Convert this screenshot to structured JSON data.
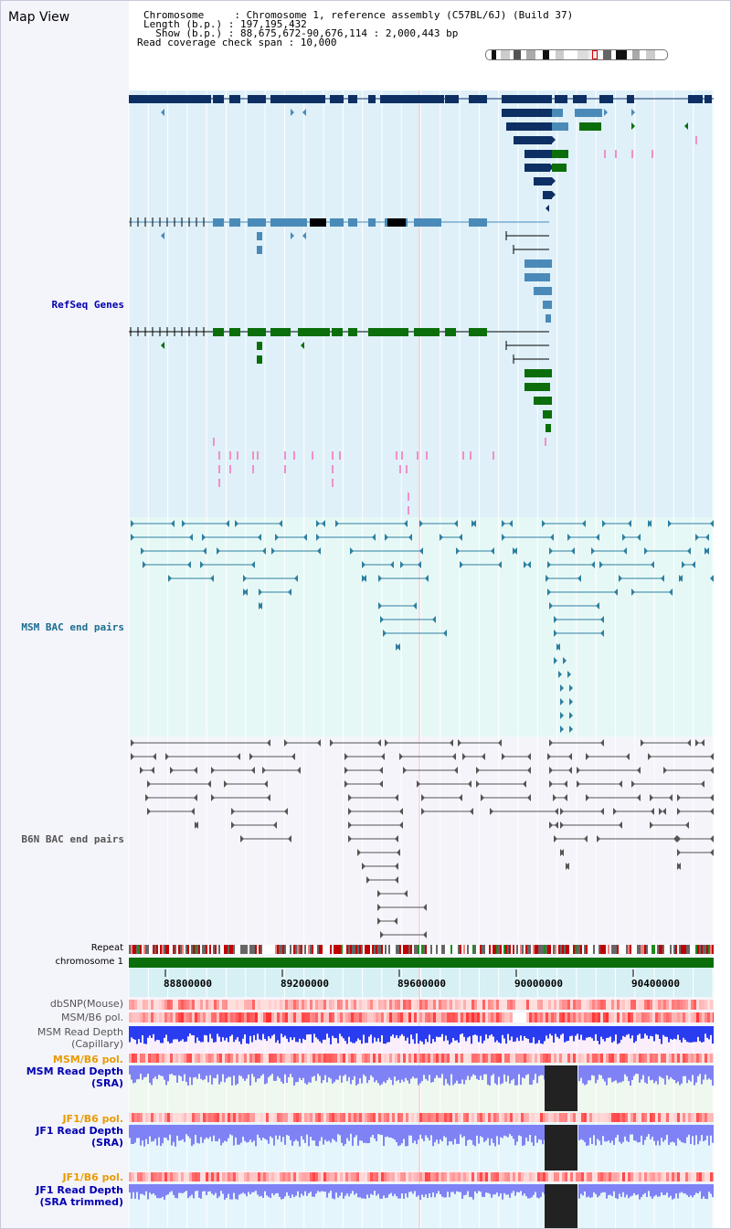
{
  "page": {
    "title": "Map View"
  },
  "info": {
    "chromosome": "Chromosome     : Chromosome 1, reference assembly (C57BL/6J) (Build 37)",
    "length": "Length (b.p.) : 197,195,432",
    "show": "  Show (b.p.) : 88,675,672-90,676,114 : 2,000,443 bp",
    "coverage": "Read coverage check span : 10,000"
  },
  "tracks": {
    "refseq": "RefSeq Genes",
    "msm_bac": "MSM BAC end pairs",
    "b6n_bac": "B6N BAC end pairs",
    "repeat": "Repeat",
    "chromosome": "chromosome 1",
    "dbsnp": "dbSNP(Mouse)",
    "msm_b6_pol": "MSM/B6 pol.",
    "msm_depth_cap_1": "MSM Read Depth",
    "msm_depth_cap_2": "(Capillary)",
    "msm_b6_pol_2": "MSM/B6 pol.",
    "msm_depth_sra_1": "MSM Read Depth",
    "msm_depth_sra_2": "(SRA)",
    "jf1_b6_pol_1": "JF1/B6 pol.",
    "jf1_depth_sra_1": "JF1 Read Depth",
    "jf1_depth_sra_2": "(SRA)",
    "jf1_b6_pol_2": "JF1/B6 pol.",
    "jf1_depth_trim_1": "JF1 Read Depth",
    "jf1_depth_trim_2": "(SRA trimmed)"
  },
  "axis": {
    "ticks": [
      "88800000",
      "89200000",
      "89600000",
      "90000000",
      "90400000"
    ]
  },
  "colors": {
    "gene_navy": "#0d2f63",
    "gene_steel": "#4a8ab8",
    "gene_green": "#0b6e0b",
    "msm_bac": "#2d7fa0",
    "b6n_bac": "#555555",
    "pink": "#f090c8",
    "chromosome_bar": "#0a6e0a",
    "depth_blue": "#2a3cf0",
    "depth_lavender": "#7f82f5"
  }
}
